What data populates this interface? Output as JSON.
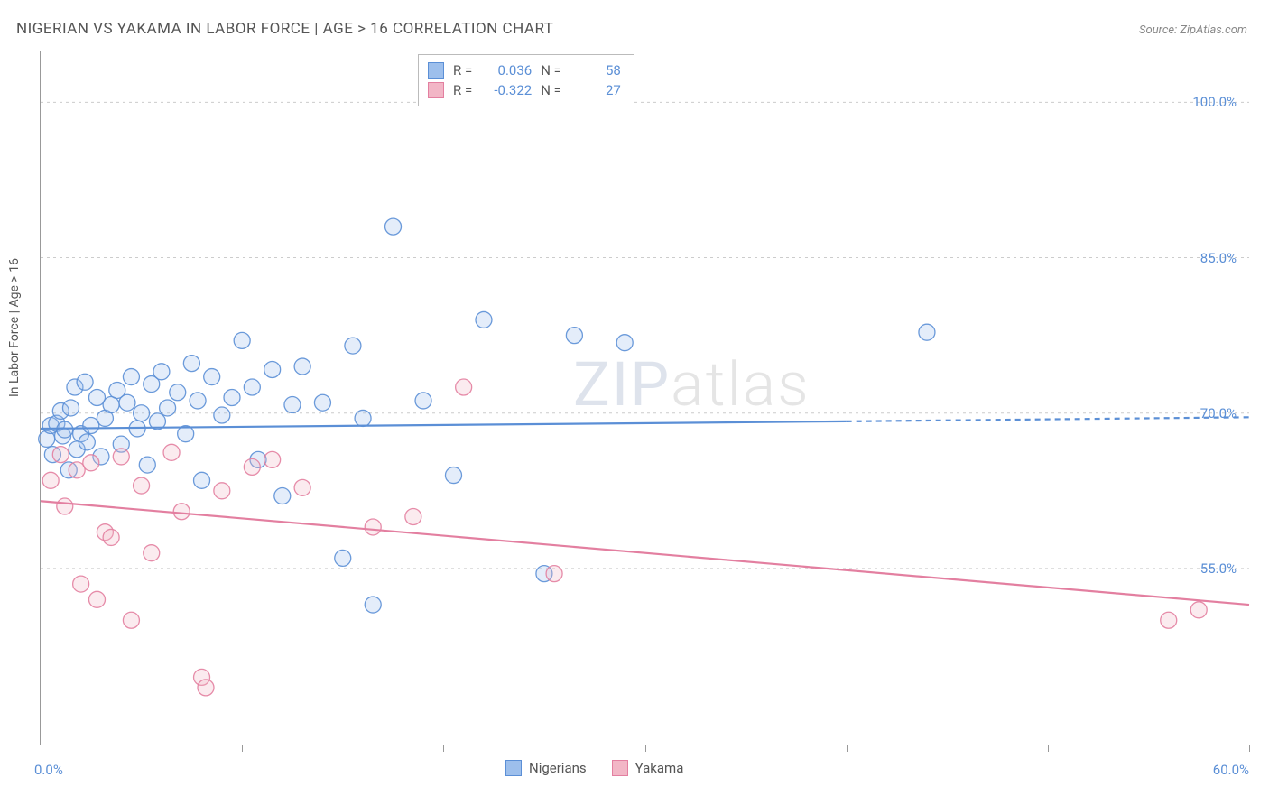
{
  "title": "NIGERIAN VS YAKAMA IN LABOR FORCE | AGE > 16 CORRELATION CHART",
  "source": "Source: ZipAtlas.com",
  "y_axis_label": "In Labor Force | Age > 16",
  "watermark_zip": "ZIP",
  "watermark_atlas": "atlas",
  "chart": {
    "type": "scatter",
    "xlim": [
      0,
      60
    ],
    "ylim": [
      38,
      105
    ],
    "y_ticks": [
      55.0,
      70.0,
      85.0,
      100.0
    ],
    "y_tick_labels": [
      "55.0%",
      "70.0%",
      "85.0%",
      "100.0%"
    ],
    "x_ticks": [
      0,
      10,
      20,
      30,
      40,
      50,
      60
    ],
    "x_left_label": "0.0%",
    "x_right_label": "60.0%",
    "grid_color": "#cccccc",
    "background_color": "#ffffff",
    "marker_radius": 9,
    "marker_fill_opacity": 0.28,
    "marker_stroke_opacity": 0.9,
    "trend_line_width": 2.2,
    "series": [
      {
        "name": "Nigerians",
        "color_fill": "#9dbfec",
        "color_stroke": "#5b8fd6",
        "r_value": "0.036",
        "n_value": "58",
        "trend": {
          "x1": 0,
          "y1": 68.5,
          "x2": 40,
          "y2": 69.2,
          "dash_after_x": 40,
          "x3": 60,
          "y3": 69.6
        },
        "points": [
          [
            0.3,
            67.5
          ],
          [
            0.5,
            68.8
          ],
          [
            0.6,
            66.0
          ],
          [
            0.8,
            69.0
          ],
          [
            1.0,
            70.2
          ],
          [
            1.1,
            67.8
          ],
          [
            1.2,
            68.4
          ],
          [
            1.4,
            64.5
          ],
          [
            1.5,
            70.5
          ],
          [
            1.7,
            72.5
          ],
          [
            1.8,
            66.5
          ],
          [
            2.0,
            68.0
          ],
          [
            2.2,
            73.0
          ],
          [
            2.3,
            67.2
          ],
          [
            2.5,
            68.8
          ],
          [
            2.8,
            71.5
          ],
          [
            3.0,
            65.8
          ],
          [
            3.2,
            69.5
          ],
          [
            3.5,
            70.8
          ],
          [
            3.8,
            72.2
          ],
          [
            4.0,
            67.0
          ],
          [
            4.3,
            71.0
          ],
          [
            4.5,
            73.5
          ],
          [
            4.8,
            68.5
          ],
          [
            5.0,
            70.0
          ],
          [
            5.3,
            65.0
          ],
          [
            5.5,
            72.8
          ],
          [
            5.8,
            69.2
          ],
          [
            6.0,
            74.0
          ],
          [
            6.3,
            70.5
          ],
          [
            6.8,
            72.0
          ],
          [
            7.2,
            68.0
          ],
          [
            7.5,
            74.8
          ],
          [
            7.8,
            71.2
          ],
          [
            8.0,
            63.5
          ],
          [
            8.5,
            73.5
          ],
          [
            9.0,
            69.8
          ],
          [
            9.5,
            71.5
          ],
          [
            10.0,
            77.0
          ],
          [
            10.5,
            72.5
          ],
          [
            10.8,
            65.5
          ],
          [
            11.5,
            74.2
          ],
          [
            12.0,
            62.0
          ],
          [
            12.5,
            70.8
          ],
          [
            13.0,
            74.5
          ],
          [
            14.0,
            71.0
          ],
          [
            15.0,
            56.0
          ],
          [
            15.5,
            76.5
          ],
          [
            16.0,
            69.5
          ],
          [
            16.5,
            51.5
          ],
          [
            17.5,
            88.0
          ],
          [
            19.0,
            71.2
          ],
          [
            20.5,
            64.0
          ],
          [
            22.0,
            79.0
          ],
          [
            25.0,
            54.5
          ],
          [
            26.5,
            77.5
          ],
          [
            29.0,
            76.8
          ],
          [
            44.0,
            77.8
          ]
        ]
      },
      {
        "name": "Yakama",
        "color_fill": "#f2b6c6",
        "color_stroke": "#e37fa0",
        "r_value": "-0.322",
        "n_value": "27",
        "trend": {
          "x1": 0,
          "y1": 61.5,
          "x2": 60,
          "y2": 51.5,
          "dash_after_x": 60,
          "x3": 60,
          "y3": 51.5
        },
        "points": [
          [
            0.5,
            63.5
          ],
          [
            1.0,
            66.0
          ],
          [
            1.2,
            61.0
          ],
          [
            1.8,
            64.5
          ],
          [
            2.0,
            53.5
          ],
          [
            2.5,
            65.2
          ],
          [
            2.8,
            52.0
          ],
          [
            3.2,
            58.5
          ],
          [
            3.5,
            58.0
          ],
          [
            4.0,
            65.8
          ],
          [
            4.5,
            50.0
          ],
          [
            5.0,
            63.0
          ],
          [
            5.5,
            56.5
          ],
          [
            6.5,
            66.2
          ],
          [
            7.0,
            60.5
          ],
          [
            8.0,
            44.5
          ],
          [
            8.2,
            43.5
          ],
          [
            9.0,
            62.5
          ],
          [
            10.5,
            64.8
          ],
          [
            11.5,
            65.5
          ],
          [
            13.0,
            62.8
          ],
          [
            16.5,
            59.0
          ],
          [
            18.5,
            60.0
          ],
          [
            21.0,
            72.5
          ],
          [
            25.5,
            54.5
          ],
          [
            56.0,
            50.0
          ],
          [
            57.5,
            51.0
          ]
        ]
      }
    ]
  },
  "stats_box": {
    "r_label": "R =",
    "n_label": "N ="
  },
  "bottom_legend": {
    "items": [
      "Nigerians",
      "Yakama"
    ]
  }
}
